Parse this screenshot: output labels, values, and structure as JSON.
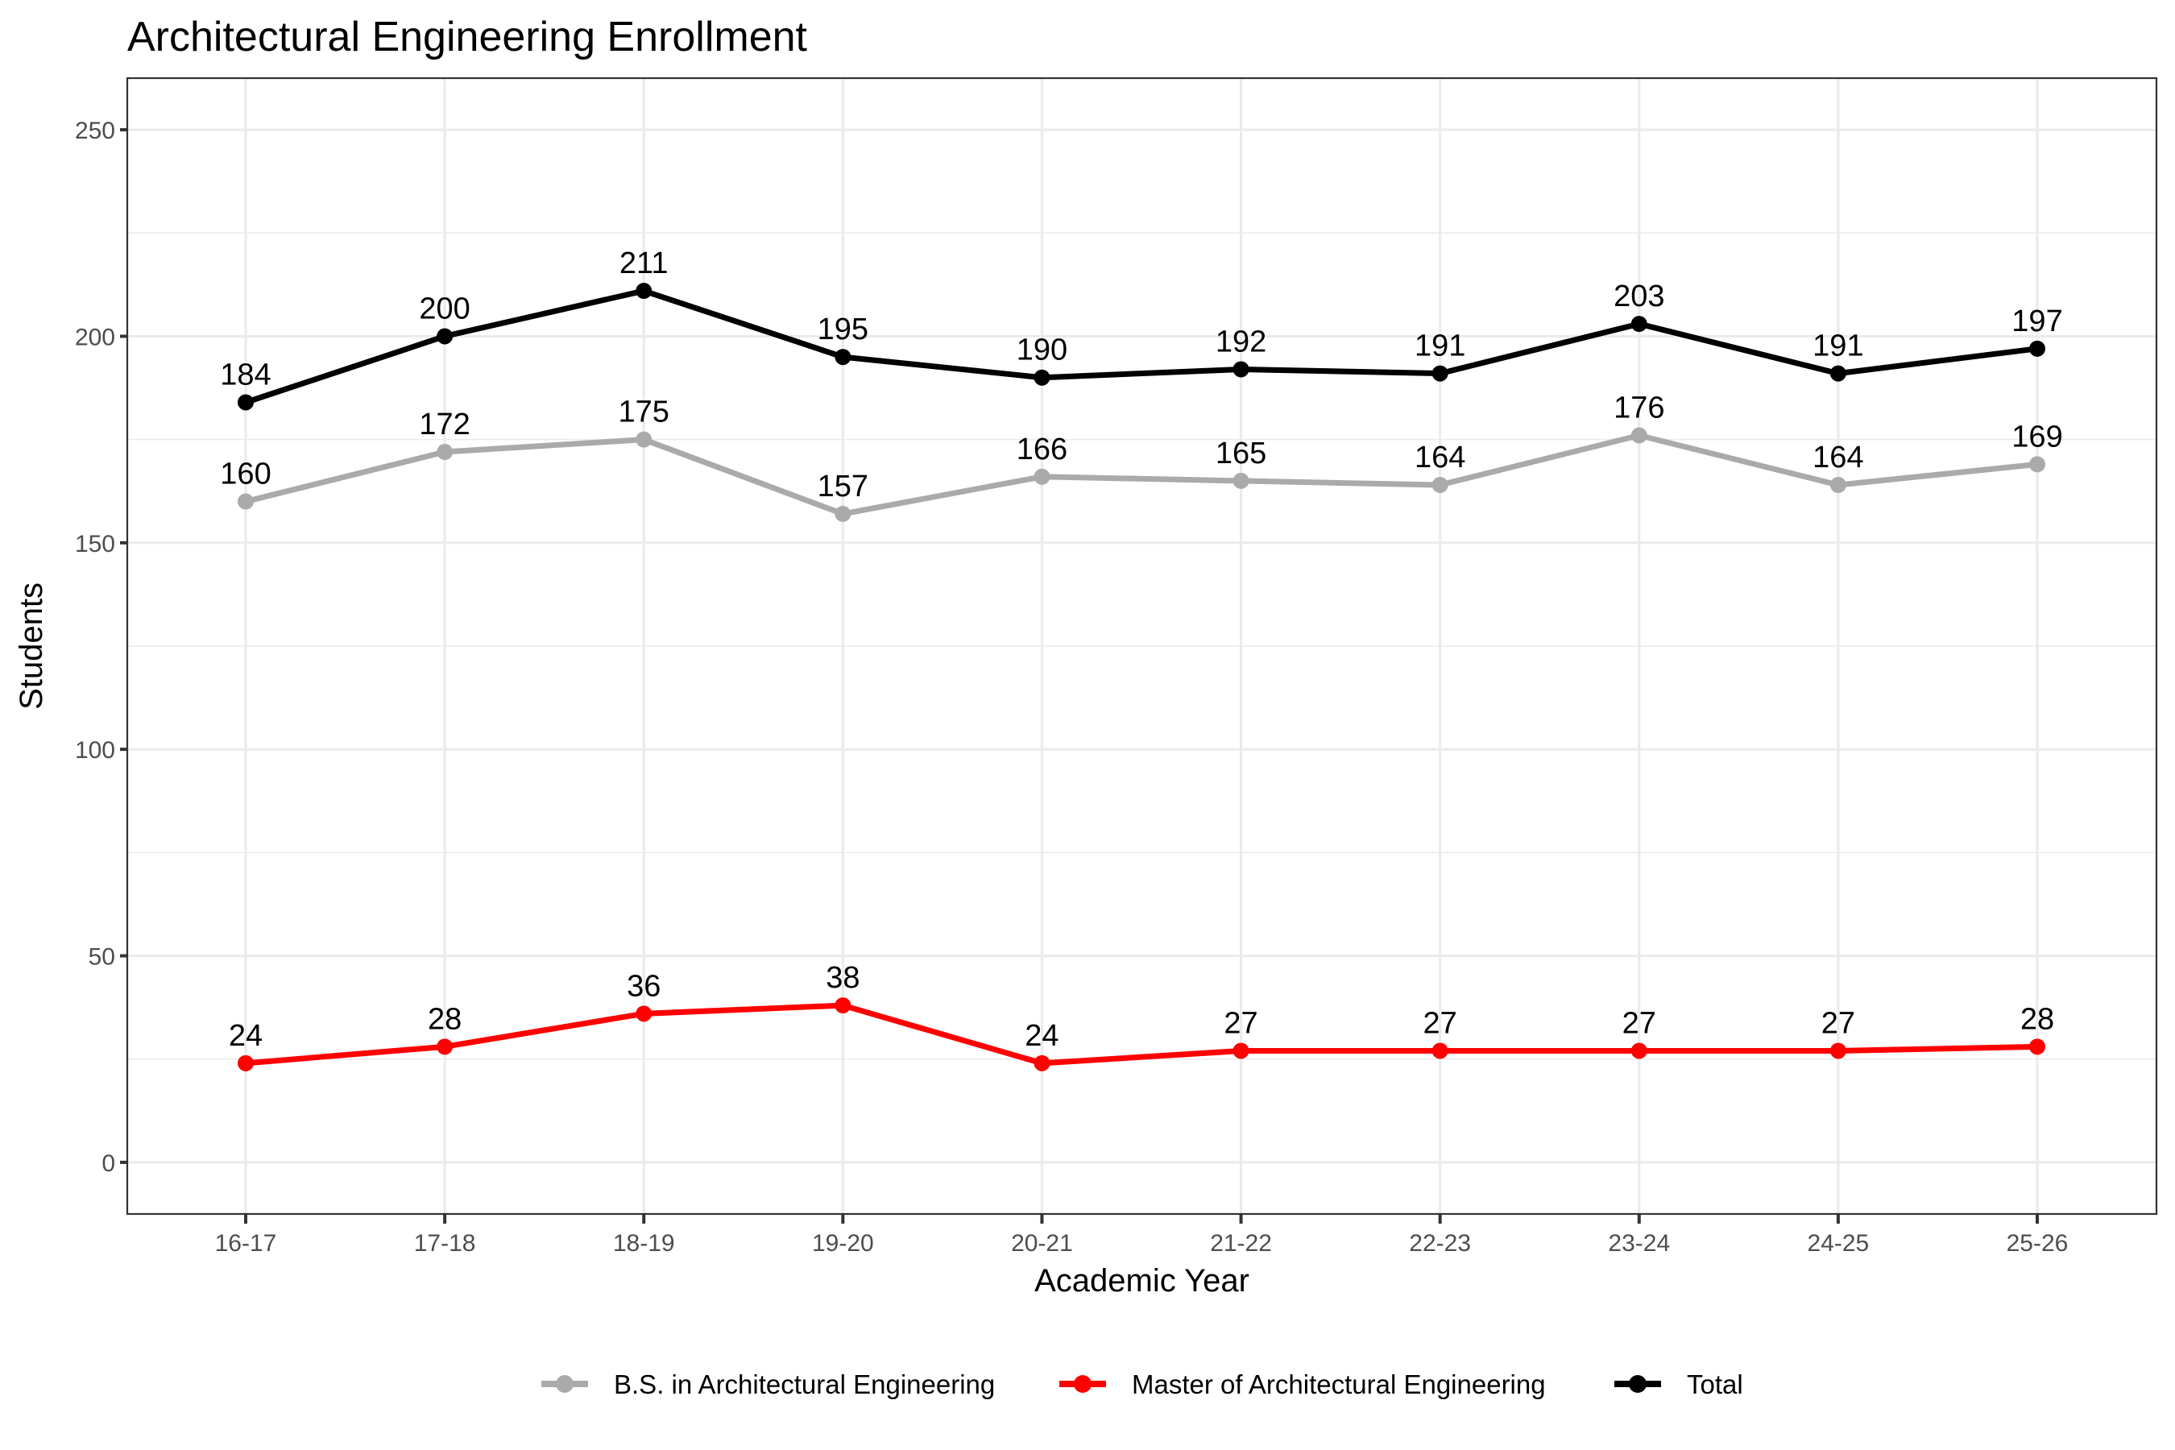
{
  "chart_data": {
    "type": "line",
    "title": "Architectural Engineering Enrollment",
    "xlabel": "Academic Year",
    "ylabel": "Students",
    "categories": [
      "16-17",
      "17-18",
      "18-19",
      "19-20",
      "20-21",
      "21-22",
      "22-23",
      "23-24",
      "24-25",
      "25-26"
    ],
    "ylim": [
      0,
      250
    ],
    "yticks": [
      0,
      50,
      100,
      150,
      200,
      250
    ],
    "grid": true,
    "legend_position": "bottom",
    "data_labels": true,
    "series": [
      {
        "name": "B.S. in Architectural Engineering",
        "color": "#AAAAAA",
        "values": [
          160,
          172,
          175,
          157,
          166,
          165,
          164,
          176,
          164,
          169
        ]
      },
      {
        "name": "Master of Architectural Engineering",
        "color": "#FF0000",
        "values": [
          24,
          28,
          36,
          38,
          24,
          27,
          27,
          27,
          27,
          28
        ]
      },
      {
        "name": "Total",
        "color": "#000000",
        "values": [
          184,
          200,
          211,
          195,
          190,
          192,
          191,
          203,
          191,
          197
        ]
      }
    ]
  }
}
